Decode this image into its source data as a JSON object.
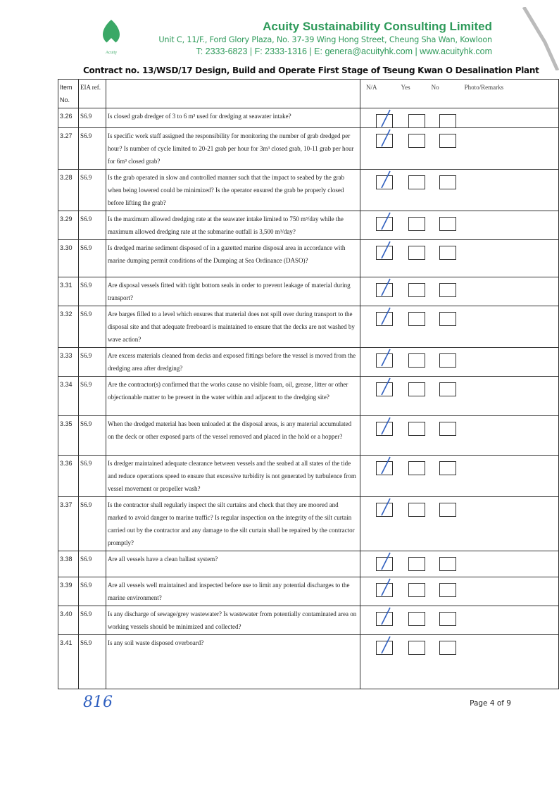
{
  "header": {
    "company": "Acuity Sustainability Consulting Limited",
    "address": "Unit C, 11/F., Ford Glory Plaza, No. 37-39 Wing Hong Street, Cheung Sha Wan, Kowloon",
    "contact": "T: 2333-6823 | F: 2333-1316 | E: genera@acuityhk.com | www.acuityhk.com",
    "logo_text": "Acuity"
  },
  "contract": "Contract no.  13/WSD/17 Design, Build and Operate First Stage of Tseung Kwan O Desalination Plant",
  "table": {
    "headers": {
      "item": "Item No.",
      "eia": "EIA ref.",
      "na": "N/A",
      "yes": "Yes",
      "no": "No",
      "remarks": "Photo/Remarks"
    },
    "rows": [
      {
        "item": "3.26",
        "eia": "S6.9",
        "q": "Is closed grab dredger of 3 to 6 m³ used for dredging at seawater intake?",
        "answer": "N/A",
        "h": 28
      },
      {
        "item": "3.27",
        "eia": "S6.9",
        "q": "Is specific work staff assigned the responsibility for monitoring the number of grab dredged per hour? Is number of cycle limited to 20-21 grab per hour for 3m³ closed grab, 10-11 grab per hour for 6m³ closed grab?",
        "answer": "N/A",
        "h": 57
      },
      {
        "item": "3.28",
        "eia": "S6.9",
        "q": "Is the grab operated in slow and controlled manner such that the impact to seabed by the grab when being lowered could be minimized? Is the operator ensured the grab be properly closed before lifting the grab?",
        "answer": "N/A",
        "h": 57
      },
      {
        "item": "3.29",
        "eia": "S6.9",
        "q": "Is the maximum allowed dredging rate at the seawater intake limited to 750 m³/day while the maximum allowed dredging rate at the submarine outfall is 3,500 m³/day?",
        "answer": "N/A",
        "h": 33
      },
      {
        "item": "3.30",
        "eia": "S6.9",
        "q": "Is dredged marine sediment disposed of in a gazetted marine disposal area in accordance with marine dumping permit conditions of the Dumping at Sea Ordinance (DASO)?",
        "answer": "N/A",
        "h": 53
      },
      {
        "item": "3.31",
        "eia": "S6.9",
        "q": "Are disposal vessels fitted with tight bottom seals in order to prevent leakage of material during transport?",
        "answer": "N/A",
        "h": 37
      },
      {
        "item": "3.32",
        "eia": "S6.9",
        "q": "Are barges filled to a level which ensures that material does not spill over during transport to the disposal site and that adequate freeboard is maintained to ensure that the decks are not washed by wave action?",
        "answer": "N/A",
        "h": 55
      },
      {
        "item": "3.33",
        "eia": "S6.9",
        "q": "Are excess materials cleaned from decks and exposed fittings before the vessel is moved from the dredging area after dredging?",
        "answer": "N/A",
        "h": 35
      },
      {
        "item": "3.34",
        "eia": "S6.9",
        "q": "Are the contractor(s) confirmed that the works cause no visible foam, oil, grease, litter or other objectionable matter to be present in the water within and adjacent to the dredging site?",
        "answer": "N/A",
        "h": 56
      },
      {
        "item": "3.35",
        "eia": "S6.9",
        "q": "When the dredged material has been unloaded at the disposal areas, is any material accumulated on the deck or other exposed parts of the vessel removed and placed in the hold or a hopper?",
        "answer": "N/A",
        "h": 56
      },
      {
        "item": "3.36",
        "eia": "S6.9",
        "q": "Is dredger maintained adequate clearance between vessels and the seabed at all states of the tide and reduce operations speed to ensure that excessive turbidity is not generated by turbulence from vessel movement or propeller wash?",
        "answer": "N/A",
        "h": 55
      },
      {
        "item": "3.37",
        "eia": "S6.9",
        "q": "Is the contractor shall regularly inspect the silt curtains and check that they are moored and marked to avoid danger to marine traffic? Is regular inspection on the integrity of the silt curtain carried out by the contractor and any damage to the silt curtain shall be repaired by the contractor promptly?",
        "answer": "N/A",
        "h": 72
      },
      {
        "item": "3.38",
        "eia": "S6.9",
        "q": "Are all vessels have a clean ballast system?",
        "answer": "N/A",
        "h": 37
      },
      {
        "item": "3.39",
        "eia": "S6.9",
        "q": "Are all vessels well maintained and inspected before use to limit any potential discharges to the marine environment?",
        "answer": "N/A",
        "h": 36
      },
      {
        "item": "3.40",
        "eia": "S6.9",
        "q": "Is any discharge of sewage/grey wastewater? Is wastewater from potentially contaminated area on working vessels should be minimized and collected?",
        "answer": "N/A",
        "h": 36
      },
      {
        "item": "3.41",
        "eia": "S6.9",
        "q": "Is any soil waste disposed overboard?",
        "answer": "N/A",
        "h": 77
      }
    ]
  },
  "footer": {
    "handwritten": "816",
    "page": "Page 4 of 9"
  },
  "colors": {
    "brand": "#2e9a5a",
    "tick": "#3060c0"
  }
}
